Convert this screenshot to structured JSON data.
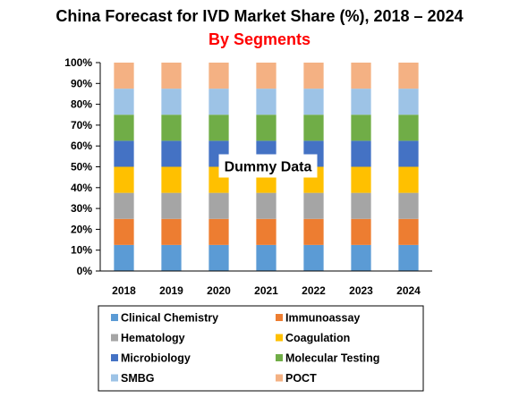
{
  "chart_data": {
    "type": "bar",
    "stacked": true,
    "title": "China Forecast for IVD Market Share (%), 2018 – 2024",
    "subtitle": "By Segments",
    "annotation": "Dummy Data",
    "categories": [
      "2018",
      "2019",
      "2020",
      "2021",
      "2022",
      "2023",
      "2024"
    ],
    "ylim": [
      0,
      100
    ],
    "yticks": [
      "0%",
      "10%",
      "20%",
      "30%",
      "40%",
      "50%",
      "60%",
      "70%",
      "80%",
      "90%",
      "100%"
    ],
    "grid": false,
    "legend_position": "bottom",
    "series": [
      {
        "name": "Clinical Chemistry",
        "color": "#5b9bd5",
        "values": [
          12.5,
          12.5,
          12.5,
          12.5,
          12.5,
          12.5,
          12.5
        ]
      },
      {
        "name": "Immunoassay",
        "color": "#ed7d31",
        "values": [
          12.5,
          12.5,
          12.5,
          12.5,
          12.5,
          12.5,
          12.5
        ]
      },
      {
        "name": "Hematology",
        "color": "#a5a5a5",
        "values": [
          12.5,
          12.5,
          12.5,
          12.5,
          12.5,
          12.5,
          12.5
        ]
      },
      {
        "name": "Coagulation",
        "color": "#ffc000",
        "values": [
          12.5,
          12.5,
          12.5,
          12.5,
          12.5,
          12.5,
          12.5
        ]
      },
      {
        "name": "Microbiology",
        "color": "#4472c4",
        "values": [
          12.5,
          12.5,
          12.5,
          12.5,
          12.5,
          12.5,
          12.5
        ]
      },
      {
        "name": "Molecular Testing",
        "color": "#70ad47",
        "values": [
          12.5,
          12.5,
          12.5,
          12.5,
          12.5,
          12.5,
          12.5
        ]
      },
      {
        "name": "SMBG",
        "color": "#9dc3e6",
        "values": [
          12.5,
          12.5,
          12.5,
          12.5,
          12.5,
          12.5,
          12.5
        ]
      },
      {
        "name": "POCT",
        "color": "#f4b183",
        "values": [
          12.5,
          12.5,
          12.5,
          12.5,
          12.5,
          12.5,
          12.5
        ]
      }
    ]
  }
}
